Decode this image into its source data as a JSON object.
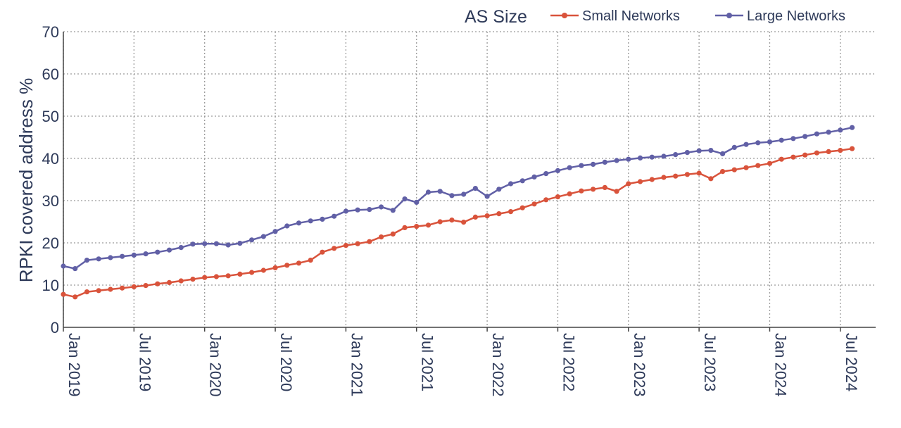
{
  "chart_data": {
    "type": "line",
    "ylabel": "RPKI covered address %",
    "ylim": [
      0,
      70
    ],
    "yticks": [
      0,
      10,
      20,
      30,
      40,
      50,
      60,
      70
    ],
    "xlim": [
      "2019-01",
      "2024-10"
    ],
    "xtick_labels": [
      "Jan 2019",
      "Jul 2019",
      "Jan 2020",
      "Jul 2020",
      "Jan 2021",
      "Jul 2021",
      "Jan 2022",
      "Jul 2022",
      "Jan 2023",
      "Jul 2023",
      "Jan 2024",
      "Jul 2024"
    ],
    "xtick_dates": [
      "2019-01",
      "2019-07",
      "2020-01",
      "2020-07",
      "2021-01",
      "2021-07",
      "2022-01",
      "2022-07",
      "2023-01",
      "2023-07",
      "2024-01",
      "2024-07"
    ],
    "grid": true,
    "legend_title": "AS Size",
    "legend_position": "top-right",
    "x": [
      "2019-01",
      "2019-02",
      "2019-03",
      "2019-04",
      "2019-05",
      "2019-06",
      "2019-07",
      "2019-08",
      "2019-09",
      "2019-10",
      "2019-11",
      "2019-12",
      "2020-01",
      "2020-02",
      "2020-03",
      "2020-04",
      "2020-05",
      "2020-06",
      "2020-07",
      "2020-08",
      "2020-09",
      "2020-10",
      "2020-11",
      "2020-12",
      "2021-01",
      "2021-02",
      "2021-03",
      "2021-04",
      "2021-05",
      "2021-06",
      "2021-07",
      "2021-08",
      "2021-09",
      "2021-10",
      "2021-11",
      "2021-12",
      "2022-01",
      "2022-02",
      "2022-03",
      "2022-04",
      "2022-05",
      "2022-06",
      "2022-07",
      "2022-08",
      "2022-09",
      "2022-10",
      "2022-11",
      "2022-12",
      "2023-01",
      "2023-02",
      "2023-03",
      "2023-04",
      "2023-05",
      "2023-06",
      "2023-07",
      "2023-08",
      "2023-09",
      "2023-10",
      "2023-11",
      "2023-12",
      "2024-01",
      "2024-02",
      "2024-03",
      "2024-04",
      "2024-05",
      "2024-06",
      "2024-07",
      "2024-08"
    ],
    "series": [
      {
        "name": "Small Networks",
        "color": "#d9533b",
        "values": [
          7.8,
          7.2,
          8.4,
          8.7,
          9.0,
          9.3,
          9.6,
          9.9,
          10.3,
          10.6,
          11.0,
          11.4,
          11.8,
          12.0,
          12.2,
          12.6,
          13.0,
          13.5,
          14.1,
          14.7,
          15.2,
          15.9,
          17.8,
          18.7,
          19.4,
          19.8,
          20.3,
          21.4,
          22.1,
          23.6,
          23.9,
          24.2,
          25.0,
          25.4,
          24.9,
          26.1,
          26.4,
          26.9,
          27.4,
          28.3,
          29.2,
          30.2,
          30.9,
          31.6,
          32.3,
          32.7,
          33.1,
          32.2,
          34.0,
          34.5,
          35.0,
          35.5,
          35.8,
          36.2,
          36.5,
          35.2,
          36.9,
          37.3,
          37.8,
          38.3,
          38.8,
          39.8,
          40.3,
          40.8,
          41.3,
          41.6,
          41.9,
          42.3
        ]
      },
      {
        "name": "Large Networks",
        "color": "#6160a6",
        "values": [
          14.5,
          13.9,
          15.9,
          16.2,
          16.5,
          16.8,
          17.1,
          17.4,
          17.8,
          18.3,
          18.9,
          19.7,
          19.8,
          19.8,
          19.5,
          19.9,
          20.7,
          21.5,
          22.7,
          24.0,
          24.7,
          25.2,
          25.6,
          26.3,
          27.5,
          27.8,
          27.9,
          28.5,
          27.7,
          30.4,
          29.6,
          32.0,
          32.2,
          31.2,
          31.5,
          32.9,
          31.0,
          32.7,
          34.0,
          34.7,
          35.6,
          36.4,
          37.1,
          37.8,
          38.3,
          38.6,
          39.1,
          39.5,
          39.8,
          40.1,
          40.3,
          40.5,
          40.9,
          41.4,
          41.8,
          41.9,
          41.1,
          42.6,
          43.3,
          43.7,
          43.9,
          44.3,
          44.7,
          45.2,
          45.8,
          46.2,
          46.7,
          47.3
        ]
      }
    ]
  }
}
